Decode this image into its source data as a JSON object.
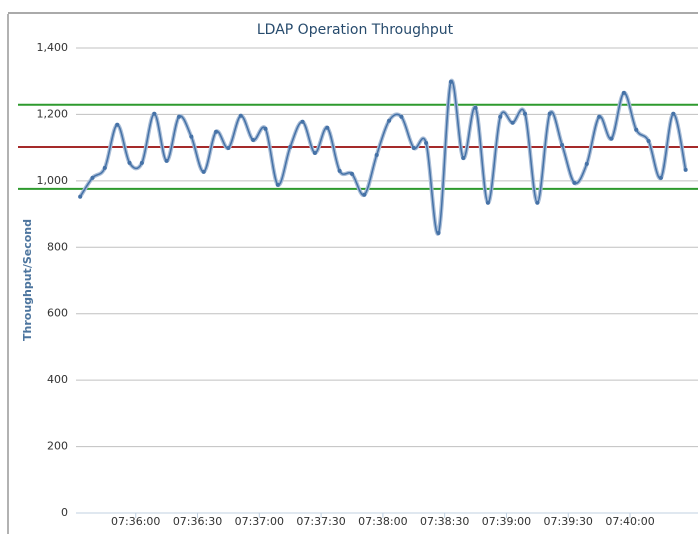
{
  "chart_data": {
    "type": "line",
    "title": "LDAP Operation Throughput",
    "y_label": "Throughput/Second",
    "x": [
      "07:35:33",
      "07:35:39",
      "07:35:45",
      "07:35:51",
      "07:35:57",
      "07:36:03",
      "07:36:09",
      "07:36:15",
      "07:36:21",
      "07:36:27",
      "07:36:33",
      "07:36:39",
      "07:36:45",
      "07:36:51",
      "07:36:57",
      "07:37:03",
      "07:37:09",
      "07:37:15",
      "07:37:21",
      "07:37:27",
      "07:37:33",
      "07:37:39",
      "07:37:45",
      "07:37:51",
      "07:37:57",
      "07:38:03",
      "07:38:09",
      "07:38:15",
      "07:38:21",
      "07:38:27",
      "07:38:33",
      "07:38:39",
      "07:38:45",
      "07:38:51",
      "07:38:57",
      "07:39:03",
      "07:39:09",
      "07:39:15",
      "07:39:21",
      "07:39:27",
      "07:39:33",
      "07:39:39",
      "07:39:45",
      "07:39:51",
      "07:39:57",
      "07:40:03",
      "07:40:09",
      "07:40:15",
      "07:40:21",
      "07:40:27"
    ],
    "series": [
      {
        "color": "#4572a7",
        "values": [
          952,
          1009,
          1039,
          1169,
          1054,
          1054,
          1202,
          1060,
          1193,
          1133,
          1027,
          1148,
          1099,
          1196,
          1123,
          1157,
          988,
          1102,
          1178,
          1084,
          1160,
          1030,
          1021,
          958,
          1078,
          1181,
          1193,
          1099,
          1114,
          843,
          1298,
          1069,
          1220,
          934,
          1193,
          1175,
          1202,
          934,
          1202,
          1108,
          994,
          1051,
          1193,
          1127,
          1265,
          1154,
          1120,
          1009,
          1202,
          1033
        ]
      }
    ],
    "reference_lines": [
      {
        "value": 1229,
        "color": "#2e9a2e"
      },
      {
        "value": 1102,
        "color": "#a52a2a"
      },
      {
        "value": 976,
        "color": "#2e9a2e"
      }
    ],
    "xlim": [
      "07:35:31",
      "07:40:33"
    ],
    "xticks": [
      "07:36:00",
      "07:36:30",
      "07:37:00",
      "07:37:30",
      "07:38:00",
      "07:38:30",
      "07:39:00",
      "07:39:30",
      "07:40:00"
    ],
    "ylim": [
      0,
      1400
    ],
    "yticks": [
      0,
      200,
      400,
      600,
      800,
      {
        "value": 1000,
        "label": "1,000"
      },
      {
        "value": 1200,
        "label": "1,200"
      },
      {
        "value": 1400,
        "label": "1,400"
      }
    ],
    "grid": true
  }
}
